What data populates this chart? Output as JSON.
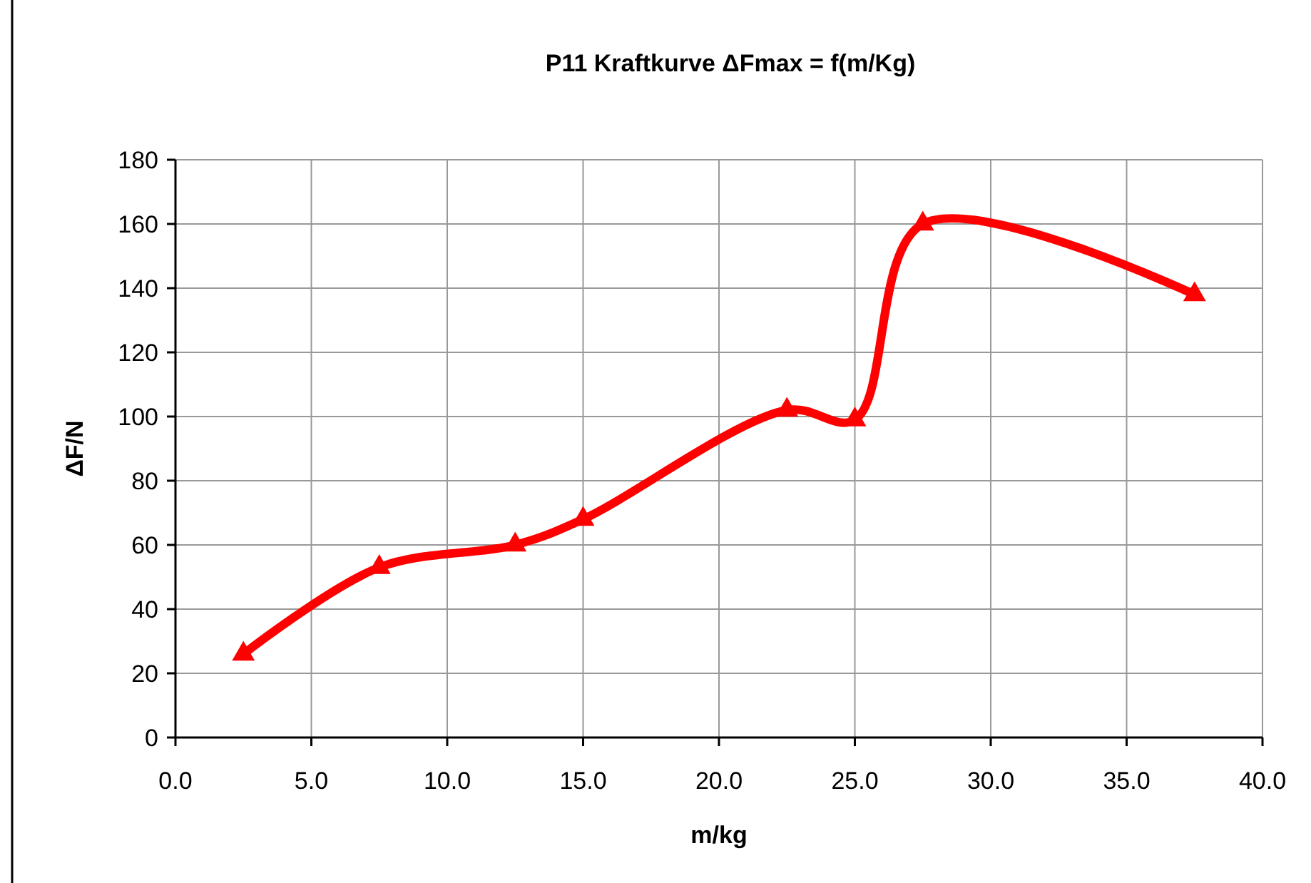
{
  "chart_data": {
    "type": "line",
    "title": "P11 Kraftkurve ΔFmax = f(m/Kg)",
    "xlabel": "m/kg",
    "ylabel": "ΔF/N",
    "x": [
      2.5,
      7.5,
      12.5,
      15,
      22.5,
      25,
      27.5,
      37.5
    ],
    "series": [
      {
        "color": "#ff0000",
        "values": [
          26,
          53,
          60,
          68,
          102,
          99,
          160,
          138
        ]
      }
    ],
    "xlim": [
      0,
      40
    ],
    "xticks": [
      {
        "value": 0,
        "label": "0.0"
      },
      {
        "value": 5,
        "label": "5.0"
      },
      {
        "value": 10,
        "label": "10.0"
      },
      {
        "value": 15,
        "label": "15.0"
      },
      {
        "value": 20,
        "label": "20.0"
      },
      {
        "value": 25,
        "label": "25.0"
      },
      {
        "value": 30,
        "label": "30.0"
      },
      {
        "value": 35,
        "label": "35.0"
      },
      {
        "value": 40,
        "label": "40.0"
      }
    ],
    "ylim": [
      0,
      180
    ],
    "yticks": [
      0,
      20,
      40,
      60,
      80,
      100,
      120,
      140,
      160,
      180
    ],
    "grid": true,
    "marker": "triangle",
    "line_style": "solid"
  }
}
